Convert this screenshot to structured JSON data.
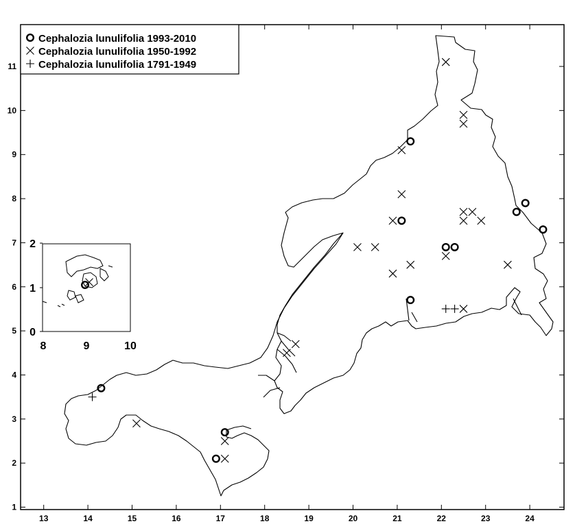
{
  "chart_data": {
    "type": "scatter",
    "title": "",
    "xlabel": "",
    "ylabel": "",
    "xlim": [
      12.5,
      25.0
    ],
    "ylim": [
      0.9,
      11.9
    ],
    "xticks": [
      13,
      14,
      15,
      16,
      17,
      18,
      19,
      20,
      21,
      22,
      23,
      24
    ],
    "yticks": [
      1,
      2,
      3,
      4,
      5,
      6,
      7,
      8,
      9,
      10,
      11
    ],
    "legend_position": "top-left",
    "series": [
      {
        "name": "Cephalozia lunulifolia 1993-2010",
        "marker": "circle",
        "points": [
          [
            21.3,
            9.3
          ],
          [
            21.1,
            7.5
          ],
          [
            22.1,
            6.9
          ],
          [
            22.3,
            6.9
          ],
          [
            21.3,
            5.7
          ],
          [
            23.7,
            7.7
          ],
          [
            23.9,
            7.9
          ],
          [
            24.3,
            7.3
          ],
          [
            14.3,
            3.7
          ],
          [
            17.1,
            2.7
          ],
          [
            16.9,
            2.1
          ]
        ]
      },
      {
        "name": "Cephalozia lunulifolia 1950-1992",
        "marker": "x",
        "points": [
          [
            22.1,
            11.1
          ],
          [
            22.5,
            9.9
          ],
          [
            22.5,
            9.7
          ],
          [
            21.1,
            9.1
          ],
          [
            21.1,
            8.1
          ],
          [
            20.9,
            7.5
          ],
          [
            22.5,
            7.7
          ],
          [
            22.7,
            7.7
          ],
          [
            22.5,
            7.5
          ],
          [
            22.9,
            7.5
          ],
          [
            20.1,
            6.9
          ],
          [
            20.5,
            6.9
          ],
          [
            22.1,
            6.7
          ],
          [
            21.3,
            6.5
          ],
          [
            20.9,
            6.3
          ],
          [
            23.5,
            6.5
          ],
          [
            22.5,
            5.5
          ],
          [
            18.7,
            4.7
          ],
          [
            18.5,
            4.5
          ],
          [
            15.1,
            2.9
          ],
          [
            17.1,
            2.5
          ],
          [
            17.1,
            2.1
          ]
        ]
      },
      {
        "name": "Cephalozia lunulifolia 1791-1949",
        "marker": "plus",
        "points": [
          [
            22.1,
            5.5
          ],
          [
            22.3,
            5.5
          ],
          [
            14.1,
            3.5
          ]
        ]
      }
    ],
    "inset": {
      "xticks": [
        "8",
        "9",
        "10"
      ],
      "yticks": [
        "0",
        "1",
        "2"
      ],
      "xlim": [
        8,
        10
      ],
      "ylim": [
        0,
        2
      ]
    }
  },
  "colors": {
    "ink": "#000000",
    "background": "#ffffff"
  }
}
